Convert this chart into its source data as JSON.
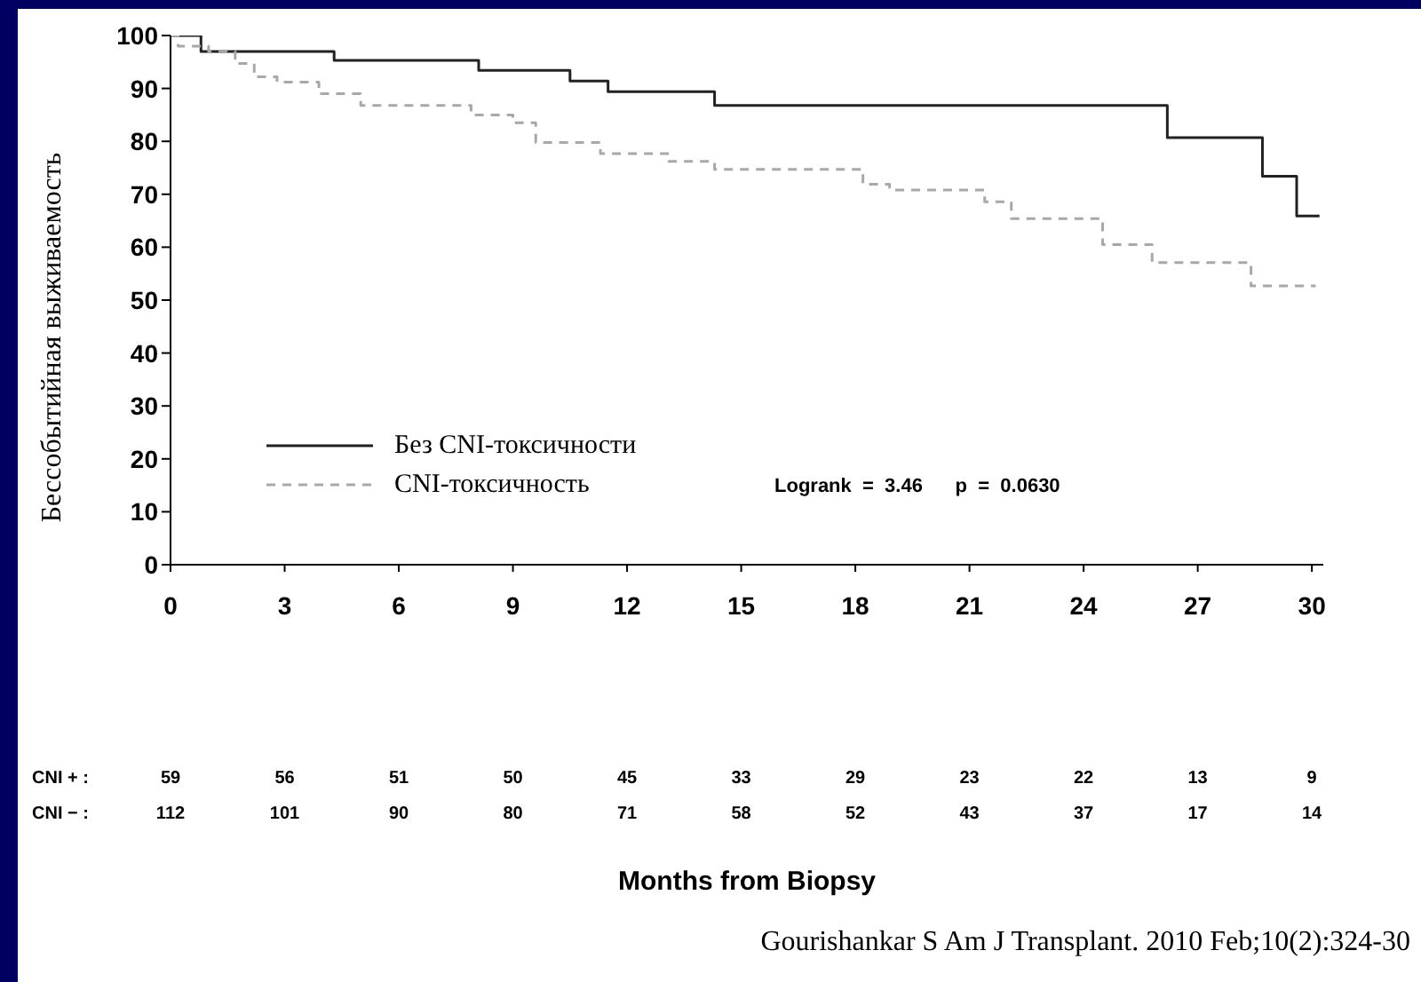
{
  "chart_data": {
    "type": "step",
    "ylabel": "Бессобытийная выживаемость",
    "xlim": [
      0,
      30.3
    ],
    "xticks": [
      0,
      3,
      6,
      9,
      12,
      15,
      18,
      21,
      24,
      27,
      30
    ],
    "ylim": [
      0,
      100
    ],
    "yticks": [
      0,
      10,
      20,
      30,
      40,
      50,
      60,
      70,
      80,
      90,
      100
    ],
    "grid": false,
    "legend": "left",
    "marker": "none",
    "series": [
      {
        "name": "Без CNI-токсичности",
        "color": "#222222",
        "line_style": "solid",
        "x": [
          0,
          0.8,
          4.3,
          8.1,
          10.5,
          11.5,
          14.3,
          26.2,
          28.7,
          29.6,
          30.2
        ],
        "values": [
          100,
          97,
          95.3,
          93.4,
          91.4,
          89.4,
          86.8,
          80.7,
          73.4,
          65.9,
          65.9
        ]
      },
      {
        "name": "CNI-токсичность",
        "color": "#a8a8a8",
        "line_style": "dashed",
        "x": [
          0,
          0.2,
          1.0,
          1.7,
          2.2,
          2.8,
          3.9,
          5.0,
          7.9,
          9.0,
          9.6,
          11.3,
          13.1,
          14.3,
          18.2,
          18.9,
          21.4,
          22.1,
          24.5,
          25.8,
          28.4,
          30.1
        ],
        "values": [
          100,
          98,
          97,
          94.7,
          92.2,
          91.2,
          89,
          86.8,
          85,
          83.5,
          79.8,
          77.7,
          76.2,
          74.7,
          71.9,
          70.8,
          68.6,
          65.4,
          60.5,
          57.1,
          52.7,
          52.7
        ]
      }
    ],
    "annotations": [
      "Logrank  =  3.46      p  =  0.0630",
      "CNI + :  59 56 51 50 45 33 29 23 22 13 9",
      "CNI − :  112 101 90 80 71 58 52 43 37 17 14",
      "Months from Biopsy",
      "Gourishankar S Am J Transplant. 2010 Feb;10(2):324-30"
    ]
  }
}
